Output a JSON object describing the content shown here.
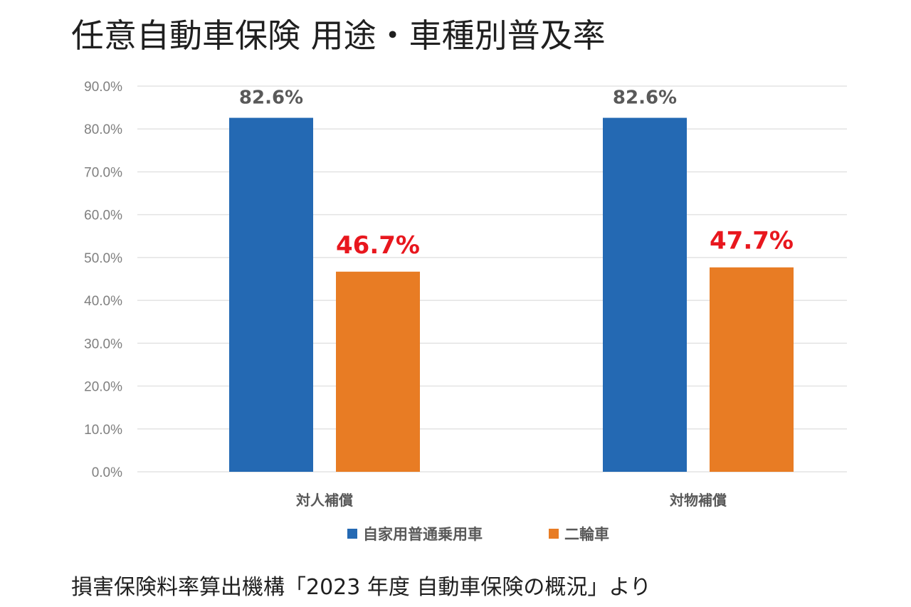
{
  "chart_data": {
    "type": "bar",
    "title": "任意自動車保険 用途・車種別普及率",
    "categories": [
      "対人補償",
      "対物補償"
    ],
    "series": [
      {
        "name": "自家用普通乗用車",
        "values": [
          82.6,
          82.6
        ],
        "labels": [
          "82.6%",
          "82.6%"
        ],
        "color": "#2469b3",
        "label_color": "#595959"
      },
      {
        "name": "二輪車",
        "values": [
          46.7,
          47.7
        ],
        "labels": [
          "46.7%",
          "47.7%"
        ],
        "color": "#e87c24",
        "label_color": "#e8171e"
      }
    ],
    "ylim": [
      0,
      90
    ],
    "yticks": [
      "0.0%",
      "10.0%",
      "20.0%",
      "30.0%",
      "40.0%",
      "50.0%",
      "60.0%",
      "70.0%",
      "80.0%",
      "90.0%"
    ],
    "xlabel": "",
    "ylabel": "",
    "grid": true,
    "legend_position": "bottom"
  },
  "source_note": "損害保険料率算出機構「2023 年度 自動車保険の概況」より",
  "colors": {
    "grid": "#e3e3e3",
    "axis_text": "#7f7f7f",
    "category_text": "#595959",
    "legend_text": "#595959"
  }
}
